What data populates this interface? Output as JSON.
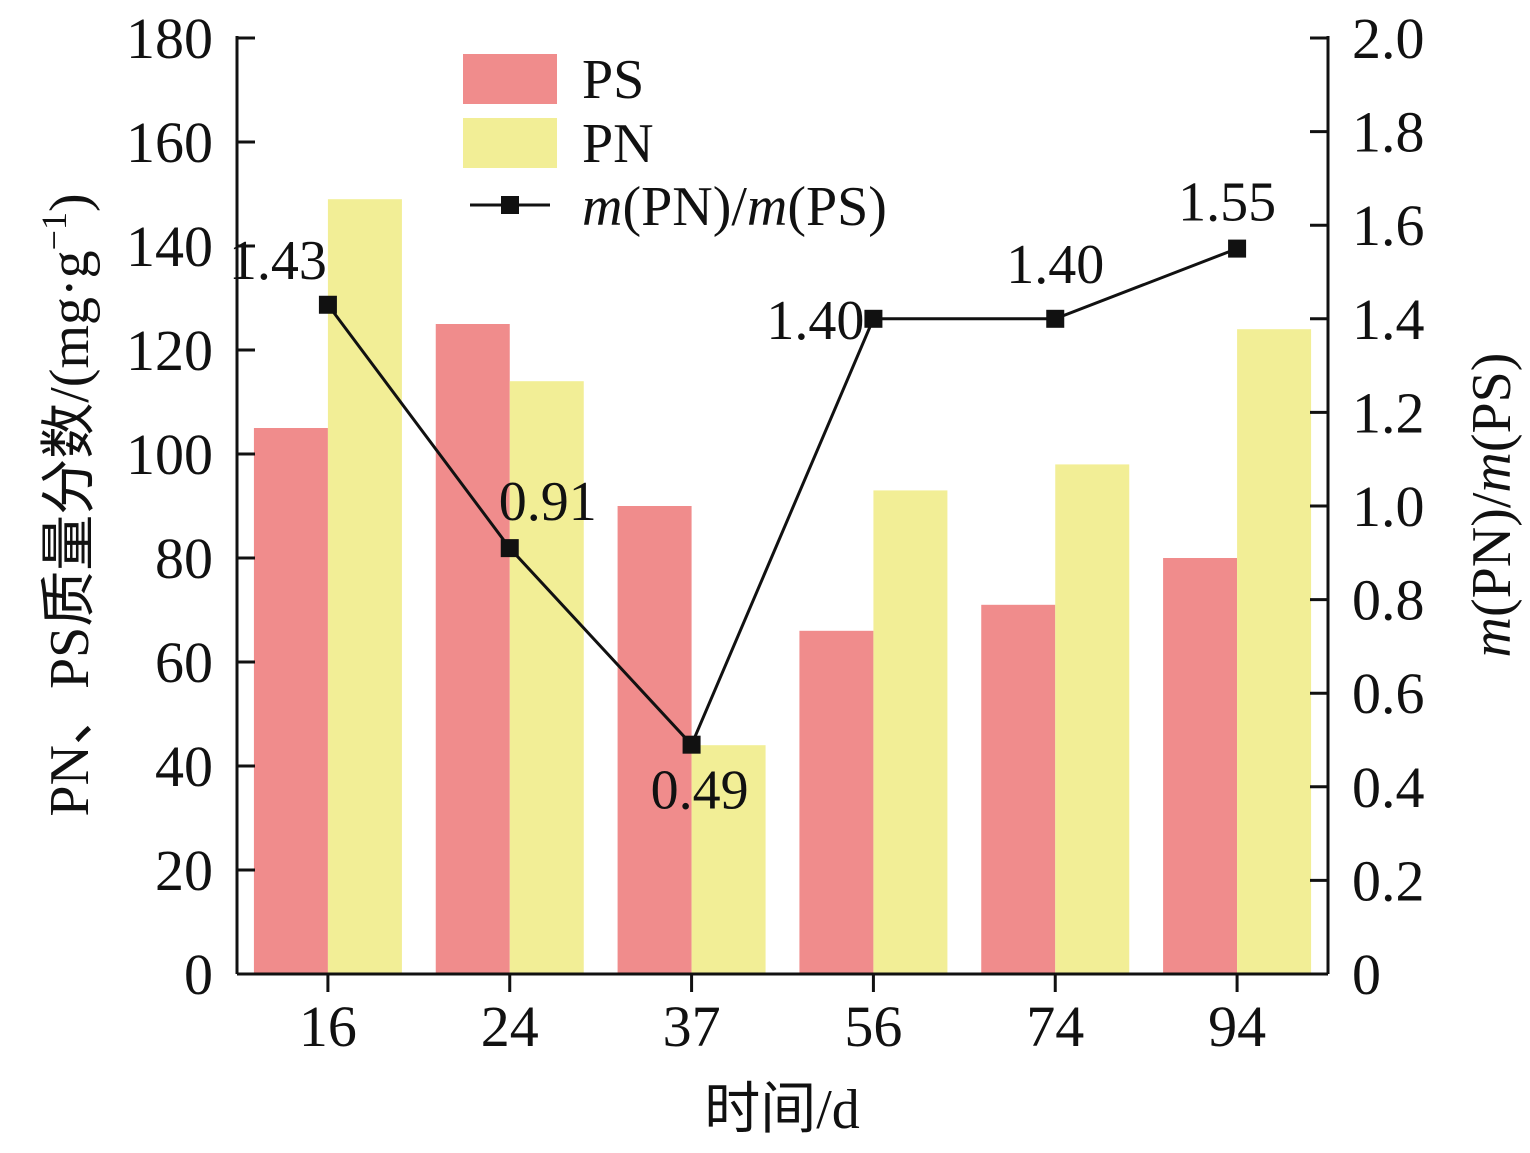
{
  "chart_data": {
    "type": "bar",
    "categories": [
      "16",
      "24",
      "37",
      "56",
      "74",
      "94"
    ],
    "series": [
      {
        "name": "PS",
        "type": "bar",
        "axis": "left",
        "color": "#f08c8c",
        "values": [
          105,
          125,
          90,
          66,
          71,
          80
        ]
      },
      {
        "name": "PN",
        "type": "bar",
        "axis": "left",
        "color": "#f2ee96",
        "values": [
          149,
          114,
          44,
          93,
          98,
          124
        ]
      },
      {
        "name_parts": [
          {
            "text": "m",
            "italic": true
          },
          {
            "text": "(PN)/",
            "italic": false
          },
          {
            "text": "m",
            "italic": true
          },
          {
            "text": "(PS)",
            "italic": false
          }
        ],
        "type": "line",
        "axis": "right",
        "color": "#111111",
        "marker": "square",
        "values": [
          1.43,
          0.91,
          0.49,
          1.4,
          1.4,
          1.55
        ],
        "labels": [
          "1.43",
          "0.91",
          "0.49",
          "1.40",
          "1.40",
          "1.55"
        ]
      }
    ],
    "xlabel": "时间/d",
    "ylabel_left": "PN、PS质量分数/(mg·g",
    "ylabel_left_sup": "−1",
    "ylabel_left_close": ")",
    "ylabel_right_parts": [
      {
        "text": "m",
        "italic": true
      },
      {
        "text": "(PN)/",
        "italic": false
      },
      {
        "text": "m",
        "italic": true
      },
      {
        "text": "(PS)",
        "italic": false
      }
    ],
    "ylim_left": [
      0,
      180
    ],
    "yticks_left": [
      "0",
      "20",
      "40",
      "60",
      "80",
      "100",
      "120",
      "140",
      "160",
      "180"
    ],
    "ylim_right": [
      0,
      2.0
    ],
    "yticks_right": [
      "0",
      "0.2",
      "0.4",
      "0.6",
      "0.8",
      "1.0",
      "1.2",
      "1.4",
      "1.6",
      "1.8",
      "2.0"
    ],
    "legend_placement": "top-center",
    "grid": false
  }
}
